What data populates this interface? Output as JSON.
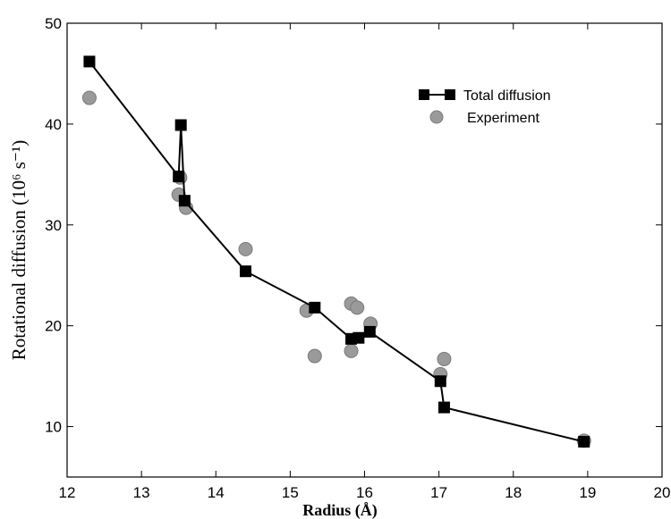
{
  "chart_data": {
    "type": "scatter",
    "xlabel": "Radius (Å)",
    "ylabel": "Rotational diffusion (10⁶ s⁻¹)",
    "xlim": [
      12,
      20
    ],
    "ylim": [
      5,
      50
    ],
    "xticks": [
      "12",
      "13",
      "14",
      "15",
      "16",
      "17",
      "18",
      "19",
      "20"
    ],
    "yticks": [
      "10",
      "20",
      "30",
      "40",
      "50"
    ],
    "grid": false,
    "legend_position": "top-right",
    "series": [
      {
        "name": "Total diffusion",
        "style": "line-square",
        "color": "#000000",
        "points": [
          {
            "x": 12.3,
            "y": 46.2
          },
          {
            "x": 13.5,
            "y": 34.8
          },
          {
            "x": 13.53,
            "y": 39.9
          },
          {
            "x": 13.58,
            "y": 32.4
          },
          {
            "x": 14.4,
            "y": 25.4
          },
          {
            "x": 15.33,
            "y": 21.8
          },
          {
            "x": 15.82,
            "y": 18.7
          },
          {
            "x": 15.92,
            "y": 18.8
          },
          {
            "x": 16.07,
            "y": 19.4
          },
          {
            "x": 17.02,
            "y": 14.5
          },
          {
            "x": 17.07,
            "y": 11.9
          },
          {
            "x": 18.95,
            "y": 8.5
          }
        ]
      },
      {
        "name": "Experiment",
        "style": "circle",
        "color": "#9a9a9a",
        "points": [
          {
            "x": 12.3,
            "y": 42.6
          },
          {
            "x": 13.5,
            "y": 33.0
          },
          {
            "x": 13.52,
            "y": 34.7
          },
          {
            "x": 13.6,
            "y": 31.7
          },
          {
            "x": 14.4,
            "y": 27.6
          },
          {
            "x": 15.22,
            "y": 21.5
          },
          {
            "x": 15.33,
            "y": 17.0
          },
          {
            "x": 15.82,
            "y": 22.2
          },
          {
            "x": 15.82,
            "y": 17.5
          },
          {
            "x": 15.9,
            "y": 21.8
          },
          {
            "x": 16.08,
            "y": 20.2
          },
          {
            "x": 17.02,
            "y": 15.2
          },
          {
            "x": 17.07,
            "y": 16.7
          },
          {
            "x": 18.95,
            "y": 8.6
          }
        ]
      }
    ]
  }
}
